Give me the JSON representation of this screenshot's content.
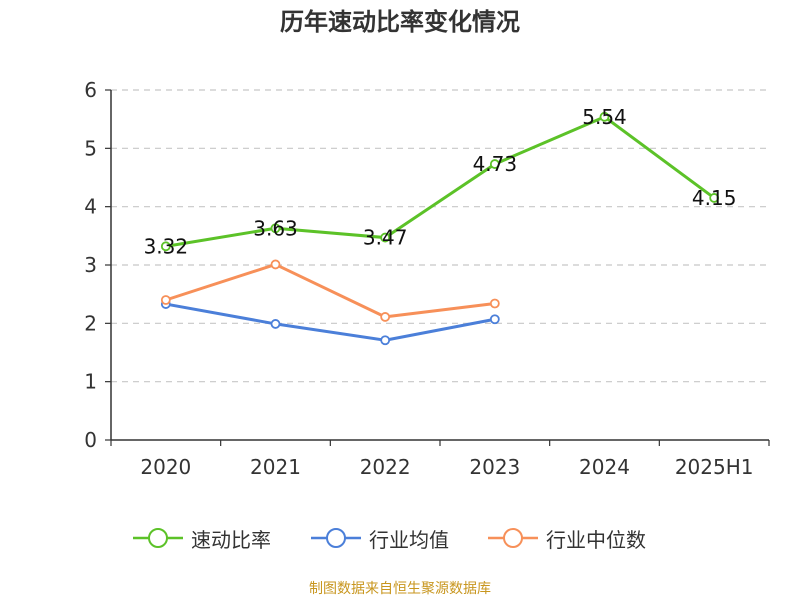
{
  "title": "历年速动比率变化情况",
  "source": "制图数据来自恒生聚源数据库",
  "chart_data": {
    "type": "line",
    "categories": [
      "2020",
      "2021",
      "2022",
      "2023",
      "2024",
      "2025H1"
    ],
    "ylim": [
      0,
      6
    ],
    "yticks": [
      0,
      1,
      2,
      3,
      4,
      5,
      6
    ],
    "grid": true,
    "legend_position": "bottom",
    "series": [
      {
        "name": "速动比率",
        "color": "#5cc228",
        "values": [
          3.32,
          3.63,
          3.47,
          4.73,
          5.54,
          4.15
        ],
        "data_labels": [
          "3.32",
          "3.63",
          "3.47",
          "4.73",
          "5.54",
          "4.15"
        ]
      },
      {
        "name": "行业均值",
        "color": "#4b7fd9",
        "values": [
          2.33,
          1.99,
          1.71,
          2.07,
          null,
          null
        ]
      },
      {
        "name": "行业中位数",
        "color": "#f79059",
        "values": [
          2.4,
          3.01,
          2.11,
          2.34,
          null,
          null
        ]
      }
    ]
  }
}
